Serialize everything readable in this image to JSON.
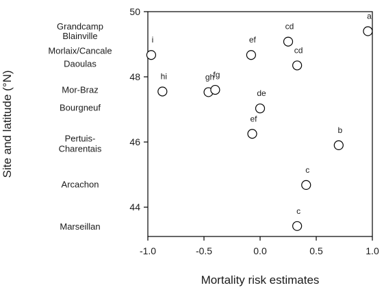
{
  "chart_data": {
    "type": "scatter",
    "xlabel": "Mortality risk estimates",
    "ylabel": "Site and latitude (°N)",
    "xlim": [
      -1.0,
      1.0
    ],
    "ylim": [
      43.1,
      50.0
    ],
    "grid": false,
    "x_ticks": [
      "-1.0",
      "-0.5",
      "0.0",
      "0.5",
      "1.0"
    ],
    "x_tick_values": [
      -1.0,
      -0.5,
      0.0,
      0.5,
      1.0
    ],
    "y_ticks": [
      "44",
      "46",
      "48",
      "50"
    ],
    "y_tick_values": [
      44,
      46,
      48,
      50
    ],
    "site_labels": [
      {
        "lines": [
          "Grandcamp"
        ],
        "y": 49.55
      },
      {
        "lines": [
          "Blainville"
        ],
        "y": 49.25
      },
      {
        "lines": [
          "Morlaix/Cancale"
        ],
        "y": 48.8
      },
      {
        "lines": [
          "Daoulas"
        ],
        "y": 48.4
      },
      {
        "lines": [
          "Mor-Braz"
        ],
        "y": 47.6
      },
      {
        "lines": [
          "Bourgneuf"
        ],
        "y": 47.05
      },
      {
        "lines": [
          "Pertuis-",
          "Charentais"
        ],
        "y": 45.95
      },
      {
        "lines": [
          "Arcachon"
        ],
        "y": 44.7
      },
      {
        "lines": [
          "Marseillan"
        ],
        "y": 43.4
      }
    ],
    "points": [
      {
        "x": 0.96,
        "y": 49.4,
        "label": "a"
      },
      {
        "x": 0.25,
        "y": 49.08,
        "label": "cd"
      },
      {
        "x": -0.97,
        "y": 48.67,
        "label": "i"
      },
      {
        "x": -0.08,
        "y": 48.67,
        "label": "ef"
      },
      {
        "x": 0.33,
        "y": 48.35,
        "label": "cd"
      },
      {
        "x": -0.87,
        "y": 47.55,
        "label": "hi"
      },
      {
        "x": -0.46,
        "y": 47.53,
        "label": "gh"
      },
      {
        "x": -0.4,
        "y": 47.6,
        "label": "fg"
      },
      {
        "x": 0.0,
        "y": 47.03,
        "label": "de"
      },
      {
        "x": -0.07,
        "y": 46.25,
        "label": "ef"
      },
      {
        "x": 0.7,
        "y": 45.9,
        "label": "b"
      },
      {
        "x": 0.41,
        "y": 44.68,
        "label": "c"
      },
      {
        "x": 0.33,
        "y": 43.42,
        "label": "c"
      }
    ]
  }
}
